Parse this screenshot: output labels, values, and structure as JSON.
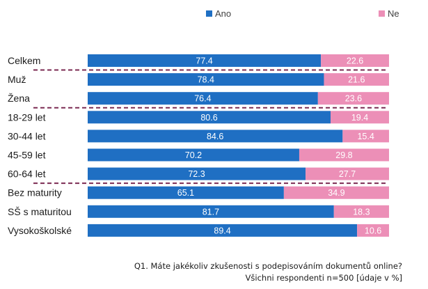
{
  "chart_data": {
    "type": "bar",
    "orientation": "horizontal",
    "stacked": true,
    "categories": [
      "Celkem",
      "Muž",
      "Žena",
      "18-29 let",
      "30-44 let",
      "45-59 let",
      "60-64 let",
      "Bez maturity",
      "SŠ s maturitou",
      "Vysokoškolské"
    ],
    "series": [
      {
        "name": "Ano",
        "color": "#1f6fc3",
        "values": [
          77.4,
          78.4,
          76.4,
          80.6,
          84.6,
          70.2,
          72.3,
          65.1,
          81.7,
          89.4
        ]
      },
      {
        "name": "Ne",
        "color": "#ec8fb7",
        "values": [
          22.6,
          21.6,
          23.6,
          19.4,
          15.4,
          29.8,
          27.7,
          34.9,
          18.3,
          10.6
        ]
      }
    ],
    "xlim": [
      0,
      100
    ],
    "legend_position": "top",
    "group_dividers_after": [
      "Celkem",
      "Žena",
      "60-64 let"
    ],
    "divider_color": "#7b2a52",
    "grid": false
  },
  "caption": {
    "question": "Q1. Máte jakékoliv zkušenosti s podepisováním dokumentů online?",
    "note": "Všichni respondenti n=500 [údaje v %]"
  }
}
